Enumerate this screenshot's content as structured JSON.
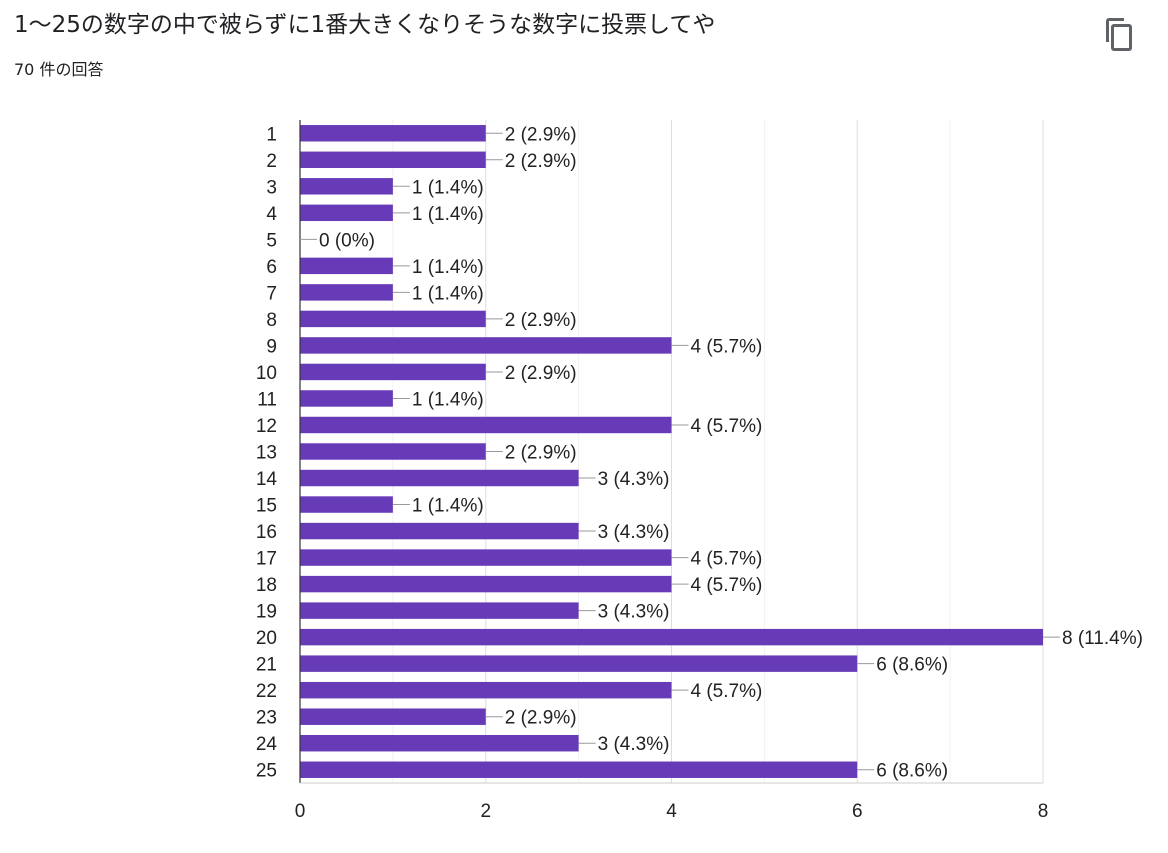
{
  "header": {
    "title": "1〜25の数字の中で被らずに1番大きくなりそうな数字に投票してや",
    "response_count": "70 件の回答",
    "copy_icon": "copy-icon"
  },
  "colors": {
    "bar": "#673ab7",
    "grid": "#e6e6e6",
    "axis": "#333333",
    "connector": "#999999",
    "text": "#222222"
  },
  "chart_data": {
    "type": "bar",
    "orientation": "horizontal",
    "categories": [
      "1",
      "2",
      "3",
      "4",
      "5",
      "6",
      "7",
      "8",
      "9",
      "10",
      "11",
      "12",
      "13",
      "14",
      "15",
      "16",
      "17",
      "18",
      "19",
      "20",
      "21",
      "22",
      "23",
      "24",
      "25"
    ],
    "values": [
      2,
      2,
      1,
      1,
      0,
      1,
      1,
      2,
      4,
      2,
      1,
      4,
      2,
      3,
      1,
      3,
      4,
      4,
      3,
      8,
      6,
      4,
      2,
      3,
      6
    ],
    "data_labels": [
      "2 (2.9%)",
      "2 (2.9%)",
      "1 (1.4%)",
      "1 (1.4%)",
      "0 (0%)",
      "1 (1.4%)",
      "1 (1.4%)",
      "2 (2.9%)",
      "4 (5.7%)",
      "2 (2.9%)",
      "1 (1.4%)",
      "4 (5.7%)",
      "2 (2.9%)",
      "3 (4.3%)",
      "1 (1.4%)",
      "3 (4.3%)",
      "4 (5.7%)",
      "4 (5.7%)",
      "3 (4.3%)",
      "8 (11.4%)",
      "6 (8.6%)",
      "4 (5.7%)",
      "2 (2.9%)",
      "3 (4.3%)",
      "6 (8.6%)"
    ],
    "xlim": [
      0,
      8
    ],
    "x_ticks": [
      0,
      2,
      4,
      6,
      8
    ],
    "grid": true,
    "legend": "none",
    "title": "",
    "xlabel": "",
    "ylabel": ""
  }
}
